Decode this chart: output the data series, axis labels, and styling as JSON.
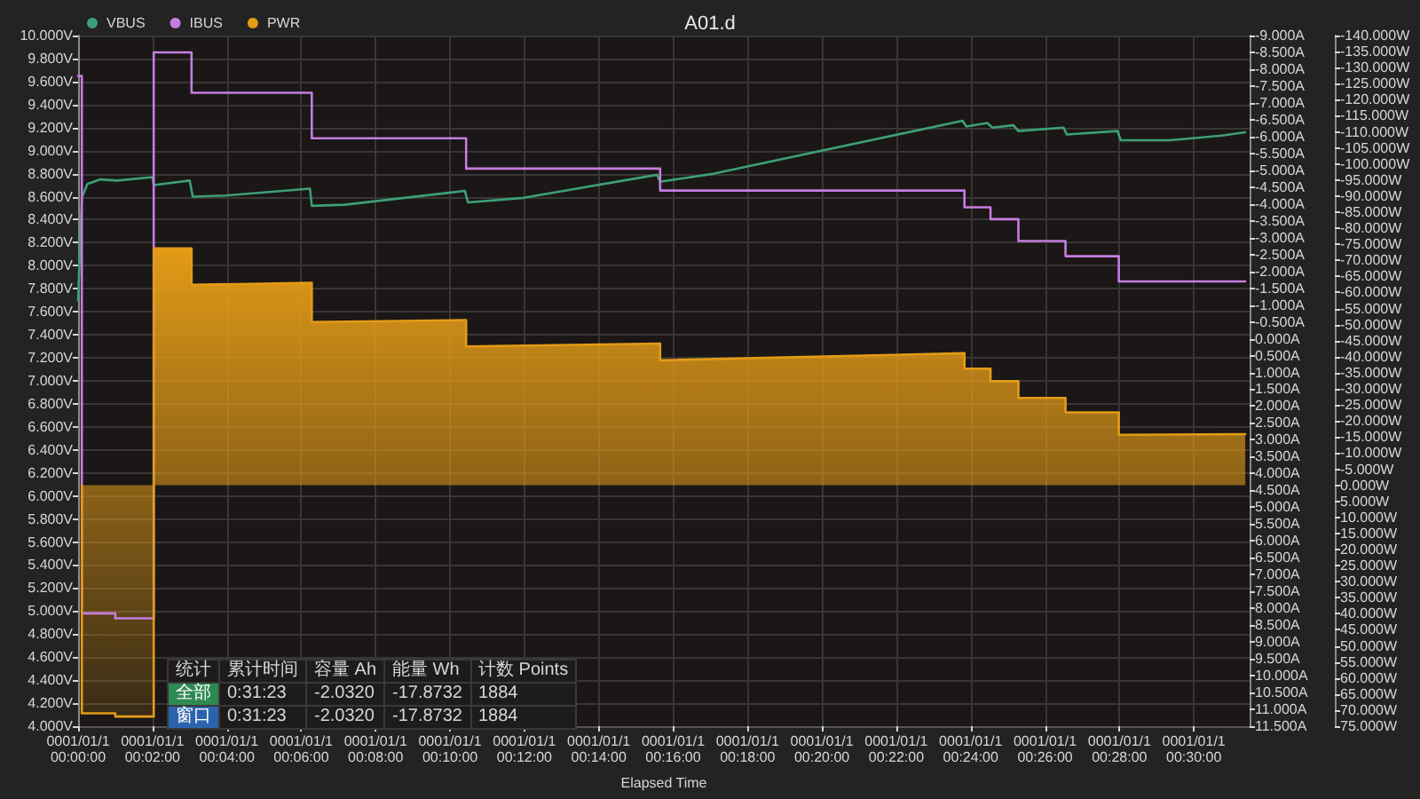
{
  "chart_data": {
    "type": "line",
    "title": "A01.d",
    "xlabel": "Elapsed Time",
    "legend": "top left",
    "grid": true,
    "xlim": [
      "--01-01T00:00:00",
      "--01-01T00:31:30"
    ],
    "xticks": [
      {
        "value": "--01-01T00:00",
        "label": "0001/01/1\n00:00:00"
      },
      {
        "value": "--01-01T00:02",
        "label": "0001/01/1\n00:02:00"
      },
      {
        "value": "--01-01T00:04",
        "label": "0001/01/1\n00:04:00"
      },
      {
        "value": "--01-01T00:06",
        "label": "0001/01/1\n00:06:00"
      },
      {
        "value": "--01-01T00:08",
        "label": "0001/01/1\n00:08:00"
      },
      {
        "value": "--01-01T00:10",
        "label": "0001/01/1\n00:10:00"
      },
      {
        "value": "--01-01T00:12",
        "label": "0001/01/1\n00:12:00"
      },
      {
        "value": "--01-01T00:14",
        "label": "0001/01/1\n00:14:00"
      },
      {
        "value": "--01-01T00:16",
        "label": "0001/01/1\n00:16:00"
      },
      {
        "value": "--01-01T00:18",
        "label": "0001/01/1\n00:18:00"
      },
      {
        "value": "--01-01T00:20",
        "label": "0001/01/1\n00:20:00"
      },
      {
        "value": "--01-01T00:22",
        "label": "0001/01/1\n00:22:00"
      },
      {
        "value": "--01-01T00:24",
        "label": "0001/01/1\n00:24:00"
      },
      {
        "value": "--01-01T00:26",
        "label": "0001/01/1\n00:26:00"
      },
      {
        "value": "--01-01T00:28",
        "label": "0001/01/1\n00:28:00"
      },
      {
        "value": "--01-01T00:30",
        "label": "0001/01/1\n00:30:00"
      }
    ],
    "ylim": [
      4,
      10
    ],
    "yticks": [
      {
        "value": 4,
        "label": "4.000V"
      },
      {
        "value": 4.2,
        "label": "4.200V"
      },
      {
        "value": 4.4,
        "label": "4.400V"
      },
      {
        "value": 4.6,
        "label": "4.600V"
      },
      {
        "value": 4.8,
        "label": "4.800V"
      },
      {
        "value": 5,
        "label": "5.000V"
      },
      {
        "value": 5.2,
        "label": "5.200V"
      },
      {
        "value": 5.4,
        "label": "5.400V"
      },
      {
        "value": 5.6,
        "label": "5.600V"
      },
      {
        "value": 5.8,
        "label": "5.800V"
      },
      {
        "value": 6,
        "label": "6.000V"
      },
      {
        "value": 6.2,
        "label": "6.200V"
      },
      {
        "value": 6.4,
        "label": "6.400V"
      },
      {
        "value": 6.6,
        "label": "6.600V"
      },
      {
        "value": 6.8,
        "label": "6.800V"
      },
      {
        "value": 7,
        "label": "7.000V"
      },
      {
        "value": 7.2,
        "label": "7.200V"
      },
      {
        "value": 7.4,
        "label": "7.400V"
      },
      {
        "value": 7.6,
        "label": "7.600V"
      },
      {
        "value": 7.8,
        "label": "7.800V"
      },
      {
        "value": 8,
        "label": "8.000V"
      },
      {
        "value": 8.2,
        "label": "8.200V"
      },
      {
        "value": 8.4,
        "label": "8.400V"
      },
      {
        "value": 8.6,
        "label": "8.600V"
      },
      {
        "value": 8.8,
        "label": "8.800V"
      },
      {
        "value": 9,
        "label": "9.000V"
      },
      {
        "value": 9.2,
        "label": "9.200V"
      },
      {
        "value": 9.4,
        "label": "9.400V"
      },
      {
        "value": 9.6,
        "label": "9.600V"
      },
      {
        "value": 9.8,
        "label": "9.800V"
      },
      {
        "value": 10,
        "label": "10.000V"
      }
    ],
    "y2lim": [
      11.5,
      -9
    ],
    "y2ticks": [
      {
        "value": -9,
        "label": "-9.000A"
      },
      {
        "value": -8.5,
        "label": "-8.500A"
      },
      {
        "value": -8,
        "label": "-8.000A"
      },
      {
        "value": -7.5,
        "label": "-7.500A"
      },
      {
        "value": -7,
        "label": "-7.000A"
      },
      {
        "value": -6.5,
        "label": "-6.500A"
      },
      {
        "value": -6,
        "label": "-6.000A"
      },
      {
        "value": -5.5,
        "label": "-5.500A"
      },
      {
        "value": -5,
        "label": "-5.000A"
      },
      {
        "value": -4.5,
        "label": "-4.500A"
      },
      {
        "value": -4,
        "label": "-4.000A"
      },
      {
        "value": -3.5,
        "label": "-3.500A"
      },
      {
        "value": -3,
        "label": "-3.000A"
      },
      {
        "value": -2.5,
        "label": "-2.500A"
      },
      {
        "value": -2,
        "label": "-2.000A"
      },
      {
        "value": -1.5,
        "label": "-1.500A"
      },
      {
        "value": -1,
        "label": "-1.000A"
      },
      {
        "value": -0.5,
        "label": "-0.500A"
      },
      {
        "value": 0,
        "label": "0.000A"
      },
      {
        "value": 0.5,
        "label": "0.500A"
      },
      {
        "value": 1,
        "label": "1.000A"
      },
      {
        "value": 1.5,
        "label": "1.500A"
      },
      {
        "value": 2,
        "label": "2.000A"
      },
      {
        "value": 2.5,
        "label": "2.500A"
      },
      {
        "value": 3,
        "label": "3.000A"
      },
      {
        "value": 3.5,
        "label": "3.500A"
      },
      {
        "value": 4,
        "label": "4.000A"
      },
      {
        "value": 4.5,
        "label": "4.500A"
      },
      {
        "value": 5,
        "label": "5.000A"
      },
      {
        "value": 5.5,
        "label": "5.500A"
      },
      {
        "value": 6,
        "label": "6.000A"
      },
      {
        "value": 6.5,
        "label": "6.500A"
      },
      {
        "value": 7,
        "label": "7.000A"
      },
      {
        "value": 7.5,
        "label": "7.500A"
      },
      {
        "value": 8,
        "label": "8.000A"
      },
      {
        "value": 8.5,
        "label": "8.500A"
      },
      {
        "value": 9,
        "label": "9.000A"
      },
      {
        "value": 9.5,
        "label": "9.500A"
      },
      {
        "value": 10,
        "label": "10.000A"
      },
      {
        "value": 10.5,
        "label": "10.500A"
      },
      {
        "value": 11,
        "label": "11.000A"
      },
      {
        "value": 11.5,
        "label": "11.500A"
      }
    ],
    "y3lim": [
      75,
      -140
    ],
    "y3ticks": [
      {
        "value": -140,
        "label": "-140.000W"
      },
      {
        "value": -135,
        "label": "-135.000W"
      },
      {
        "value": -130,
        "label": "-130.000W"
      },
      {
        "value": -125,
        "label": "-125.000W"
      },
      {
        "value": -120,
        "label": "-120.000W"
      },
      {
        "value": -115,
        "label": "-115.000W"
      },
      {
        "value": -110,
        "label": "-110.000W"
      },
      {
        "value": -105,
        "label": "-105.000W"
      },
      {
        "value": -100,
        "label": "-100.000W"
      },
      {
        "value": -95,
        "label": "-95.000W"
      },
      {
        "value": -90,
        "label": "-90.000W"
      },
      {
        "value": -85,
        "label": "-85.000W"
      },
      {
        "value": -80,
        "label": "-80.000W"
      },
      {
        "value": -75,
        "label": "-75.000W"
      },
      {
        "value": -70,
        "label": "-70.000W"
      },
      {
        "value": -65,
        "label": "-65.000W"
      },
      {
        "value": -60,
        "label": "-60.000W"
      },
      {
        "value": -55,
        "label": "-55.000W"
      },
      {
        "value": -50,
        "label": "-50.000W"
      },
      {
        "value": -45,
        "label": "-45.000W"
      },
      {
        "value": -40,
        "label": "-40.000W"
      },
      {
        "value": -35,
        "label": "-35.000W"
      },
      {
        "value": -30,
        "label": "-30.000W"
      },
      {
        "value": -25,
        "label": "-25.000W"
      },
      {
        "value": -20,
        "label": "-20.000W"
      },
      {
        "value": -15,
        "label": "-15.000W"
      },
      {
        "value": -10,
        "label": "-10.000W"
      },
      {
        "value": -5,
        "label": "-5.000W"
      },
      {
        "value": 0,
        "label": "0.000W"
      },
      {
        "value": 5,
        "label": "5.000W"
      },
      {
        "value": 10,
        "label": "10.000W"
      },
      {
        "value": 15,
        "label": "15.000W"
      },
      {
        "value": 20,
        "label": "20.000W"
      },
      {
        "value": 25,
        "label": "25.000W"
      },
      {
        "value": 30,
        "label": "30.000W"
      },
      {
        "value": 35,
        "label": "35.000W"
      },
      {
        "value": 40,
        "label": "40.000W"
      },
      {
        "value": 45,
        "label": "45.000W"
      },
      {
        "value": 50,
        "label": "50.000W"
      },
      {
        "value": 55,
        "label": "55.000W"
      },
      {
        "value": 60,
        "label": "60.000W"
      },
      {
        "value": 65,
        "label": "65.000W"
      },
      {
        "value": 70,
        "label": "70.000W"
      },
      {
        "value": 75,
        "label": "75.000W"
      }
    ],
    "series": [
      {
        "name": "VBUS",
        "color": "#3d9f77",
        "x": [
          "--01-01T00:00:00",
          "--01-01T00:00:06",
          "--01-01T00:00:15",
          "--01-01T00:00:36",
          "--01-01T00:01:03",
          "--01-01T00:02:00",
          "--01-01T00:02:02",
          "--01-01T00:03:00",
          "--01-01T00:03:05",
          "--01-01T00:03:58",
          "--01-01T00:06:14",
          "--01-01T00:06:17",
          "--01-01T00:07:10",
          "--01-01T00:10:24",
          "--01-01T00:10:29",
          "--01-01T00:11:59",
          "--01-01T00:15:34",
          "--01-01T00:15:39",
          "--01-01T00:17:06",
          "--01-01T00:23:47",
          "--01-01T00:23:53",
          "--01-01T00:24:27",
          "--01-01T00:24:35",
          "--01-01T00:25:09",
          "--01-01T00:25:17",
          "--01-01T00:26:30",
          "--01-01T00:26:35",
          "--01-01T00:27:57",
          "--01-01T00:28:02",
          "--01-01T00:29:21",
          "--01-01T00:30:45",
          "--01-01T00:31:23"
        ],
        "values": [
          7.7,
          8.59,
          8.71,
          8.75,
          8.74,
          8.77,
          8.7,
          8.74,
          8.6,
          8.61,
          8.67,
          8.52,
          8.53,
          8.65,
          8.55,
          8.59,
          8.79,
          8.73,
          8.8,
          9.26,
          9.21,
          9.24,
          9.2,
          9.22,
          9.17,
          9.2,
          9.14,
          9.17,
          9.09,
          9.09,
          9.13,
          9.16
        ]
      },
      {
        "name": "IBUS",
        "type": "step",
        "axis": "y2",
        "color": "#c57ddf",
        "x": [
          "--01-01T00:00:00",
          "--01-01T00:00:06",
          "--01-01T00:01:00",
          "--01-01T00:02:02",
          "--01-01T00:03:03",
          "--01-01T00:06:17",
          "--01-01T00:10:26",
          "--01-01T00:15:39",
          "--01-01T00:23:50",
          "--01-01T00:24:32",
          "--01-01T00:25:17",
          "--01-01T00:26:33",
          "--01-01T00:27:59",
          "--01-01T00:31:23"
        ],
        "values": [
          -7.8,
          8.15,
          8.3,
          -8.5,
          -7.3,
          -5.95,
          -5.05,
          -4.4,
          -3.9,
          -3.55,
          -2.9,
          -2.45,
          -1.7,
          -1.7
        ]
      },
      {
        "name": "PWR",
        "type": "area",
        "axis": "y3",
        "color": "#e39b17",
        "x": [
          "--01-01T00:00:06",
          "--01-01T00:00:06",
          "--01-01T00:01:00",
          "--01-01T00:01:00",
          "--01-01T00:02:02",
          "--01-01T00:02:02",
          "--01-01T00:03:03",
          "--01-01T00:03:03",
          "--01-01T00:06:17",
          "--01-01T00:06:17",
          "--01-01T00:10:26",
          "--01-01T00:10:26",
          "--01-01T00:15:39",
          "--01-01T00:15:39",
          "--01-01T00:23:50",
          "--01-01T00:23:50",
          "--01-01T00:24:32",
          "--01-01T00:24:32",
          "--01-01T00:25:17",
          "--01-01T00:25:17",
          "--01-01T00:26:33",
          "--01-01T00:26:33",
          "--01-01T00:27:59",
          "--01-01T00:27:59",
          "--01-01T00:31:23"
        ],
        "values": [
          0,
          71,
          71,
          72,
          72,
          -73.7,
          -73.7,
          -62.4,
          -63.0,
          -50.8,
          -51.4,
          -43.2,
          -44.1,
          -38.9,
          -41.1,
          -36.3,
          -36.3,
          -32.4,
          -32.4,
          -27.2,
          -27.2,
          -22.7,
          -22.7,
          -15.7,
          -15.9
        ]
      }
    ],
    "annotations": [
      "统计",
      "累计时间",
      "容量 Ah",
      "能量 Wh",
      "计数 Points",
      "全部",
      "0:31:23",
      "-2.0320",
      "-17.8732",
      "1884",
      "窗口",
      "0:31:23",
      "-2.0320",
      "-17.8732",
      "1884"
    ]
  }
}
